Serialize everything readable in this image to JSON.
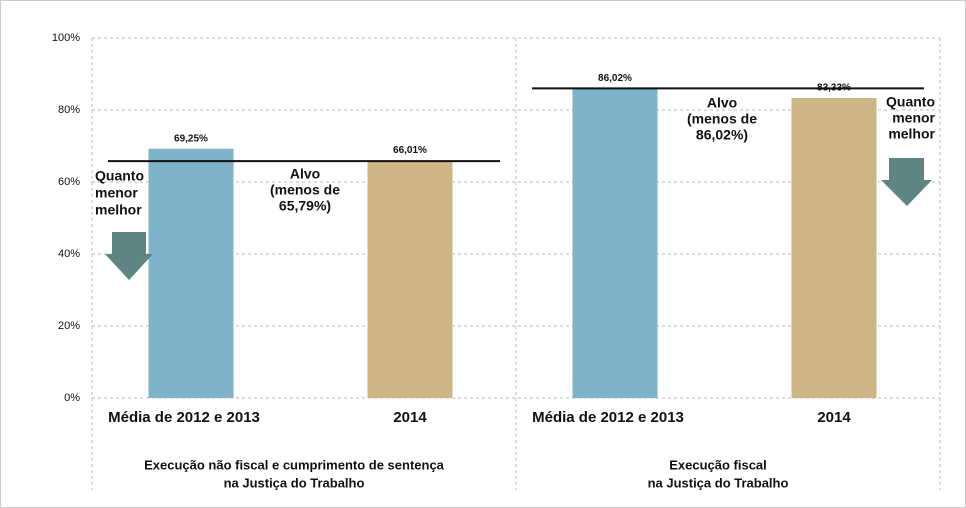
{
  "chart_data": {
    "type": "bar",
    "ylim": [
      0,
      100
    ],
    "yticks": [
      {
        "value": 0,
        "label": "0%"
      },
      {
        "value": 20,
        "label": "20%"
      },
      {
        "value": 40,
        "label": "40%"
      },
      {
        "value": 60,
        "label": "60%"
      },
      {
        "value": 80,
        "label": "80%"
      },
      {
        "value": 100,
        "label": "100%"
      }
    ],
    "grid": true,
    "groups": [
      {
        "label": [
          "Execução não fiscal e cumprimento de sentença",
          "na Justiça do Trabalho"
        ],
        "categories": [
          "Média de 2012 e 2013",
          "2014"
        ],
        "values": [
          69.25,
          66.01
        ],
        "value_labels": [
          "69,25%",
          "66,01%"
        ],
        "colors": [
          "#7fb3c9",
          "#cdb585"
        ],
        "target": 65.79,
        "target_label": [
          "Alvo",
          "(menos de",
          "65,79%)"
        ],
        "note": [
          "Quanto",
          "menor",
          "melhor"
        ]
      },
      {
        "label": [
          "Execução fiscal",
          "na Justiça do Trabalho"
        ],
        "categories": [
          "Média de 2012 e 2013",
          "2014"
        ],
        "values": [
          86.02,
          83.33
        ],
        "value_labels": [
          "86,02%",
          "83,33%"
        ],
        "colors": [
          "#7fb3c9",
          "#cdb585"
        ],
        "target": 86.02,
        "target_label": [
          "Alvo",
          "(menos de",
          "86,02%)"
        ],
        "note": [
          "Quanto",
          "menor",
          "melhor"
        ]
      }
    ]
  }
}
